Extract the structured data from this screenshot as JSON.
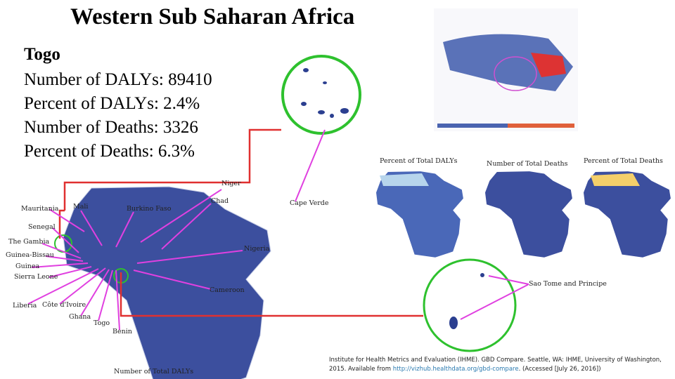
{
  "title": "Western Sub Saharan Africa",
  "country": {
    "name": "Togo",
    "stats": [
      "Number of DALYs: 89410",
      "Percent of DALYs: 2.4%",
      "Number of Deaths: 3326",
      "Percent of Deaths: 6.3%"
    ]
  },
  "map_titles": [
    "Percent of Total DALYs",
    "Number of Total Deaths",
    "Percent of Total Deaths"
  ],
  "main_map_title": "Number of Total DALYs",
  "country_labels": [
    "Niger",
    "Chad",
    "Mauritania",
    "Mali",
    "Burkino Faso",
    "Cape Verde",
    "Senegal",
    "The Gambia",
    "Nigeria",
    "Guinea-Bissau",
    "Guinea",
    "Sierra Leone",
    "Cameroon",
    "Liberia",
    "Côte d'Ivoire",
    "Ghana",
    "Togo",
    "Benin",
    "Sao Tome and Principe"
  ],
  "citation": {
    "text": "Institute for Health Metrics and Evaluation (IHME). GBD Compare. Seattle, WA: IHME, University of Washington, 2015. Available from",
    "link": "http://vizhub.healthdata.org/gbd-compare",
    "tail": ". (Accessed [July 26, 2016])"
  }
}
